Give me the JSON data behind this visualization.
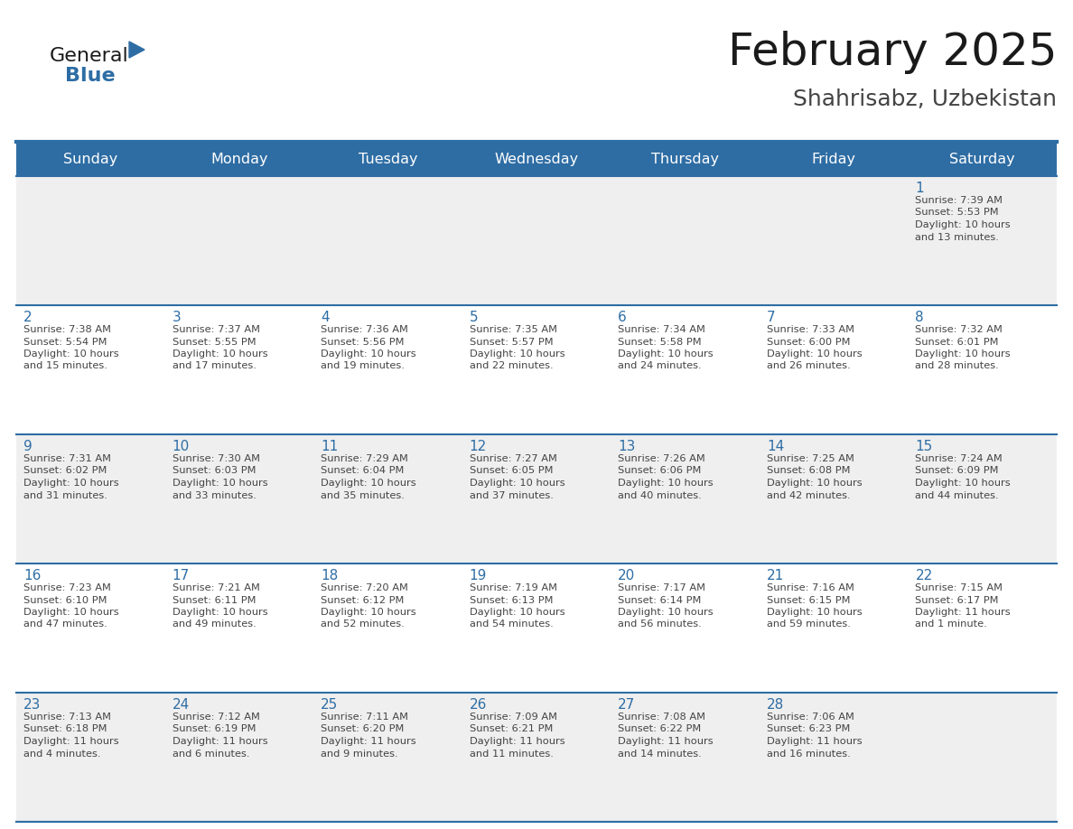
{
  "title": "February 2025",
  "subtitle": "Shahrisabz, Uzbekistan",
  "header_bg": "#2E6DA4",
  "header_text_color": "#FFFFFF",
  "row_bg_odd": "#EFEFEF",
  "row_bg_even": "#FFFFFF",
  "day_names": [
    "Sunday",
    "Monday",
    "Tuesday",
    "Wednesday",
    "Thursday",
    "Friday",
    "Saturday"
  ],
  "grid_color": "#2E6DA4",
  "row_line_color": "#2E6DA4",
  "title_color": "#1a1a1a",
  "subtitle_color": "#444444",
  "day_number_color": "#2E6DA4",
  "cell_text_color": "#444444",
  "logo_general_color": "#1a1a1a",
  "logo_blue_color": "#2E6DA4",
  "weeks": [
    [
      null,
      null,
      null,
      null,
      null,
      null,
      {
        "day": 1,
        "sunrise": "7:39 AM",
        "sunset": "5:53 PM",
        "daylight_hours": 10,
        "daylight_minutes": 13
      }
    ],
    [
      {
        "day": 2,
        "sunrise": "7:38 AM",
        "sunset": "5:54 PM",
        "daylight_hours": 10,
        "daylight_minutes": 15
      },
      {
        "day": 3,
        "sunrise": "7:37 AM",
        "sunset": "5:55 PM",
        "daylight_hours": 10,
        "daylight_minutes": 17
      },
      {
        "day": 4,
        "sunrise": "7:36 AM",
        "sunset": "5:56 PM",
        "daylight_hours": 10,
        "daylight_minutes": 19
      },
      {
        "day": 5,
        "sunrise": "7:35 AM",
        "sunset": "5:57 PM",
        "daylight_hours": 10,
        "daylight_minutes": 22
      },
      {
        "day": 6,
        "sunrise": "7:34 AM",
        "sunset": "5:58 PM",
        "daylight_hours": 10,
        "daylight_minutes": 24
      },
      {
        "day": 7,
        "sunrise": "7:33 AM",
        "sunset": "6:00 PM",
        "daylight_hours": 10,
        "daylight_minutes": 26
      },
      {
        "day": 8,
        "sunrise": "7:32 AM",
        "sunset": "6:01 PM",
        "daylight_hours": 10,
        "daylight_minutes": 28
      }
    ],
    [
      {
        "day": 9,
        "sunrise": "7:31 AM",
        "sunset": "6:02 PM",
        "daylight_hours": 10,
        "daylight_minutes": 31
      },
      {
        "day": 10,
        "sunrise": "7:30 AM",
        "sunset": "6:03 PM",
        "daylight_hours": 10,
        "daylight_minutes": 33
      },
      {
        "day": 11,
        "sunrise": "7:29 AM",
        "sunset": "6:04 PM",
        "daylight_hours": 10,
        "daylight_minutes": 35
      },
      {
        "day": 12,
        "sunrise": "7:27 AM",
        "sunset": "6:05 PM",
        "daylight_hours": 10,
        "daylight_minutes": 37
      },
      {
        "day": 13,
        "sunrise": "7:26 AM",
        "sunset": "6:06 PM",
        "daylight_hours": 10,
        "daylight_minutes": 40
      },
      {
        "day": 14,
        "sunrise": "7:25 AM",
        "sunset": "6:08 PM",
        "daylight_hours": 10,
        "daylight_minutes": 42
      },
      {
        "day": 15,
        "sunrise": "7:24 AM",
        "sunset": "6:09 PM",
        "daylight_hours": 10,
        "daylight_minutes": 44
      }
    ],
    [
      {
        "day": 16,
        "sunrise": "7:23 AM",
        "sunset": "6:10 PM",
        "daylight_hours": 10,
        "daylight_minutes": 47
      },
      {
        "day": 17,
        "sunrise": "7:21 AM",
        "sunset": "6:11 PM",
        "daylight_hours": 10,
        "daylight_minutes": 49
      },
      {
        "day": 18,
        "sunrise": "7:20 AM",
        "sunset": "6:12 PM",
        "daylight_hours": 10,
        "daylight_minutes": 52
      },
      {
        "day": 19,
        "sunrise": "7:19 AM",
        "sunset": "6:13 PM",
        "daylight_hours": 10,
        "daylight_minutes": 54
      },
      {
        "day": 20,
        "sunrise": "7:17 AM",
        "sunset": "6:14 PM",
        "daylight_hours": 10,
        "daylight_minutes": 56
      },
      {
        "day": 21,
        "sunrise": "7:16 AM",
        "sunset": "6:15 PM",
        "daylight_hours": 10,
        "daylight_minutes": 59
      },
      {
        "day": 22,
        "sunrise": "7:15 AM",
        "sunset": "6:17 PM",
        "daylight_hours": 11,
        "daylight_minutes": 1
      }
    ],
    [
      {
        "day": 23,
        "sunrise": "7:13 AM",
        "sunset": "6:18 PM",
        "daylight_hours": 11,
        "daylight_minutes": 4
      },
      {
        "day": 24,
        "sunrise": "7:12 AM",
        "sunset": "6:19 PM",
        "daylight_hours": 11,
        "daylight_minutes": 6
      },
      {
        "day": 25,
        "sunrise": "7:11 AM",
        "sunset": "6:20 PM",
        "daylight_hours": 11,
        "daylight_minutes": 9
      },
      {
        "day": 26,
        "sunrise": "7:09 AM",
        "sunset": "6:21 PM",
        "daylight_hours": 11,
        "daylight_minutes": 11
      },
      {
        "day": 27,
        "sunrise": "7:08 AM",
        "sunset": "6:22 PM",
        "daylight_hours": 11,
        "daylight_minutes": 14
      },
      {
        "day": 28,
        "sunrise": "7:06 AM",
        "sunset": "6:23 PM",
        "daylight_hours": 11,
        "daylight_minutes": 16
      },
      null
    ]
  ]
}
